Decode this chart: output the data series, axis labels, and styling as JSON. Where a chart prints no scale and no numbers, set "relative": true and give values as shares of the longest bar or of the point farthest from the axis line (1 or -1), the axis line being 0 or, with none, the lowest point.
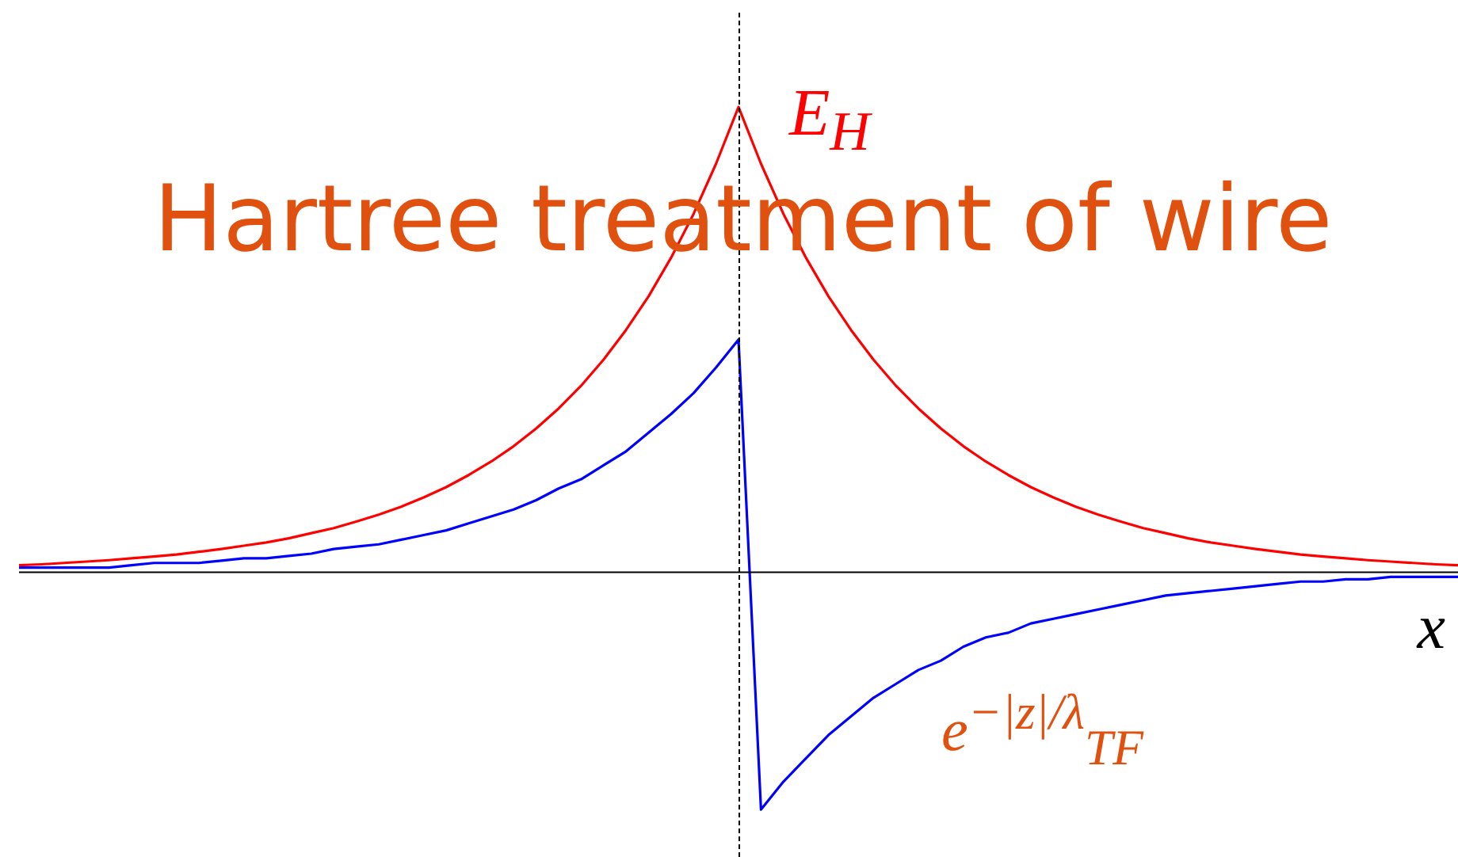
{
  "chart_data": {
    "type": "line",
    "title": "Hartree treatment of wire",
    "xlabel": "x",
    "relative": true,
    "legend": false,
    "marker": "none",
    "categories": [
      null,
      null,
      null,
      null,
      null,
      null,
      null,
      null,
      null,
      null,
      null,
      null,
      null,
      null,
      null,
      null,
      null,
      null,
      null,
      null,
      null,
      null,
      null,
      null,
      null,
      null,
      null,
      null,
      null,
      null,
      null,
      null,
      null,
      null,
      null,
      null,
      null,
      null,
      null,
      null,
      null,
      null,
      null,
      null,
      null,
      null,
      null,
      null,
      null,
      null,
      null,
      null,
      null,
      null,
      null,
      null,
      null,
      null,
      null,
      null,
      null,
      null,
      null,
      null,
      null
    ],
    "series": [
      {
        "color": "#ff0000",
        "values": [
          0.015,
          0.017,
          0.02,
          0.023,
          0.026,
          0.03,
          0.034,
          0.038,
          0.044,
          0.05,
          0.057,
          0.064,
          0.073,
          0.084,
          0.095,
          0.109,
          0.124,
          0.141,
          0.161,
          0.183,
          0.209,
          0.238,
          0.271,
          0.309,
          0.352,
          0.401,
          0.457,
          0.521,
          0.593,
          0.676,
          0.77,
          0.878,
          1,
          0.878,
          0.77,
          0.676,
          0.593,
          0.521,
          0.457,
          0.401,
          0.352,
          0.309,
          0.271,
          0.238,
          0.209,
          0.183,
          0.161,
          0.141,
          0.124,
          0.109,
          0.095,
          0.084,
          0.073,
          0.064,
          0.057,
          0.05,
          0.044,
          0.038,
          0.034,
          0.03,
          0.026,
          0.023,
          0.02,
          0.017,
          0.015
        ]
      },
      {
        "color": "#0000ff",
        "values": [
          0.01,
          0.01,
          0.01,
          0.01,
          0.01,
          0.015,
          0.02,
          0.02,
          0.02,
          0.025,
          0.03,
          0.03,
          0.035,
          0.04,
          0.05,
          0.055,
          0.06,
          0.07,
          0.08,
          0.09,
          0.105,
          0.12,
          0.135,
          0.155,
          0.18,
          0.2,
          0.23,
          0.26,
          0.3,
          0.34,
          0.385,
          0.44,
          0.5,
          -0.51,
          -0.45,
          -0.4,
          -0.35,
          -0.31,
          -0.27,
          -0.24,
          -0.21,
          -0.19,
          -0.16,
          -0.14,
          -0.13,
          -0.11,
          -0.1,
          -0.09,
          -0.08,
          -0.07,
          -0.06,
          -0.05,
          -0.045,
          -0.04,
          -0.035,
          -0.03,
          -0.025,
          -0.02,
          -0.02,
          -0.015,
          -0.015,
          -0.01,
          -0.01,
          -0.01,
          -0.01
        ]
      }
    ],
    "annotations": [
      "E$_{H}$",
      "e$^{−|z|/λ}$$_{TF}$"
    ]
  }
}
